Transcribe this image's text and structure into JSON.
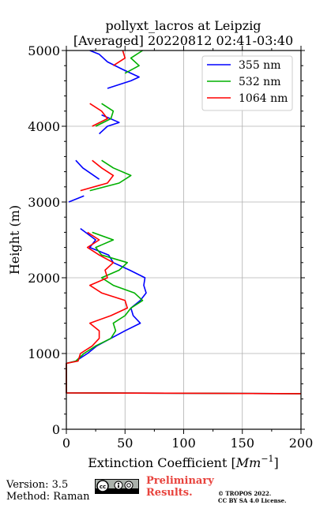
{
  "chart_data": {
    "type": "line",
    "orientation": "profile",
    "title": "pollyxt_lacros at Leipzig",
    "subtitle": "[Averaged] 20220812 02:41-03:40",
    "xlabel": "Extinction Coefficient [Mm⁻¹]",
    "xlabel_main": "Extinction Coefficient [",
    "xlabel_unit": "Mm",
    "xlabel_exp": "−1",
    "xlabel_close": "]",
    "ylabel": "Height (m)",
    "xlim": [
      0,
      200
    ],
    "ylim": [
      0,
      5000
    ],
    "x_ticks": [
      0,
      50,
      100,
      150,
      200
    ],
    "y_ticks": [
      0,
      1000,
      2000,
      3000,
      4000,
      5000
    ],
    "grid": true,
    "legend_position": "top-right",
    "series": [
      {
        "name": "355 nm",
        "color": "#0000ff",
        "points": [
          [
            200,
            470
          ],
          [
            0,
            480
          ],
          [
            0,
            870
          ],
          [
            8,
            900
          ],
          [
            18,
            1000
          ],
          [
            26,
            1100
          ],
          [
            38,
            1200
          ],
          [
            50,
            1300
          ],
          [
            63,
            1400
          ],
          [
            57,
            1500
          ],
          [
            55,
            1600
          ],
          [
            63,
            1700
          ],
          [
            68,
            1800
          ],
          [
            66,
            1900
          ],
          [
            67,
            2000
          ],
          [
            54,
            2100
          ],
          [
            40,
            2200
          ],
          [
            36,
            2300
          ],
          [
            20,
            2400
          ],
          [
            25,
            2500
          ],
          [
            12,
            2650
          ],
          [
            null,
            null
          ],
          [
            2,
            3000
          ],
          [
            15,
            3080
          ],
          [
            null,
            null
          ],
          [
            28,
            3300
          ],
          [
            14,
            3450
          ],
          [
            8,
            3550
          ],
          [
            null,
            null
          ],
          [
            28,
            3900
          ],
          [
            35,
            4000
          ],
          [
            45,
            4050
          ],
          [
            30,
            4150
          ],
          [
            null,
            null
          ],
          [
            35,
            4500
          ],
          [
            55,
            4600
          ],
          [
            62,
            4650
          ],
          [
            48,
            4750
          ],
          [
            35,
            4850
          ],
          [
            28,
            4950
          ],
          [
            20,
            5000
          ]
        ]
      },
      {
        "name": "532 nm",
        "color": "#00b000",
        "points": [
          [
            200,
            470
          ],
          [
            0,
            480
          ],
          [
            0,
            870
          ],
          [
            8,
            900
          ],
          [
            15,
            1000
          ],
          [
            25,
            1100
          ],
          [
            38,
            1200
          ],
          [
            42,
            1300
          ],
          [
            40,
            1400
          ],
          [
            50,
            1500
          ],
          [
            55,
            1600
          ],
          [
            65,
            1700
          ],
          [
            58,
            1800
          ],
          [
            40,
            1900
          ],
          [
            30,
            2000
          ],
          [
            45,
            2100
          ],
          [
            52,
            2200
          ],
          [
            30,
            2300
          ],
          [
            25,
            2400
          ],
          [
            40,
            2500
          ],
          [
            22,
            2600
          ],
          [
            null,
            null
          ],
          [
            20,
            3150
          ],
          [
            45,
            3250
          ],
          [
            55,
            3350
          ],
          [
            40,
            3450
          ],
          [
            30,
            3550
          ],
          [
            null,
            null
          ],
          [
            25,
            4000
          ],
          [
            38,
            4100
          ],
          [
            40,
            4200
          ],
          [
            30,
            4300
          ],
          [
            null,
            null
          ],
          [
            50,
            4700
          ],
          [
            62,
            4800
          ],
          [
            55,
            4900
          ],
          [
            65,
            5000
          ]
        ]
      },
      {
        "name": "1064 nm",
        "color": "#ff0000",
        "points": [
          [
            200,
            470
          ],
          [
            0,
            480
          ],
          [
            0,
            870
          ],
          [
            10,
            900
          ],
          [
            12,
            1000
          ],
          [
            22,
            1100
          ],
          [
            28,
            1200
          ],
          [
            28,
            1300
          ],
          [
            20,
            1400
          ],
          [
            38,
            1500
          ],
          [
            52,
            1600
          ],
          [
            50,
            1700
          ],
          [
            30,
            1800
          ],
          [
            20,
            1900
          ],
          [
            35,
            2000
          ],
          [
            33,
            2100
          ],
          [
            40,
            2200
          ],
          [
            28,
            2300
          ],
          [
            18,
            2400
          ],
          [
            28,
            2500
          ],
          [
            18,
            2600
          ],
          [
            null,
            null
          ],
          [
            12,
            3150
          ],
          [
            35,
            3250
          ],
          [
            40,
            3350
          ],
          [
            30,
            3450
          ],
          [
            22,
            3550
          ],
          [
            null,
            null
          ],
          [
            22,
            4000
          ],
          [
            35,
            4100
          ],
          [
            30,
            4200
          ],
          [
            20,
            4300
          ],
          [
            null,
            null
          ],
          [
            40,
            4800
          ],
          [
            50,
            4900
          ],
          [
            48,
            5000
          ]
        ]
      }
    ]
  },
  "footer": {
    "version": "Version: 3.5",
    "method": "Method: Raman",
    "preliminary": [
      "Preliminary",
      "Results."
    ],
    "copyright": [
      "© TROPOS 2022.",
      "CC BY SA 4.0 License."
    ]
  }
}
